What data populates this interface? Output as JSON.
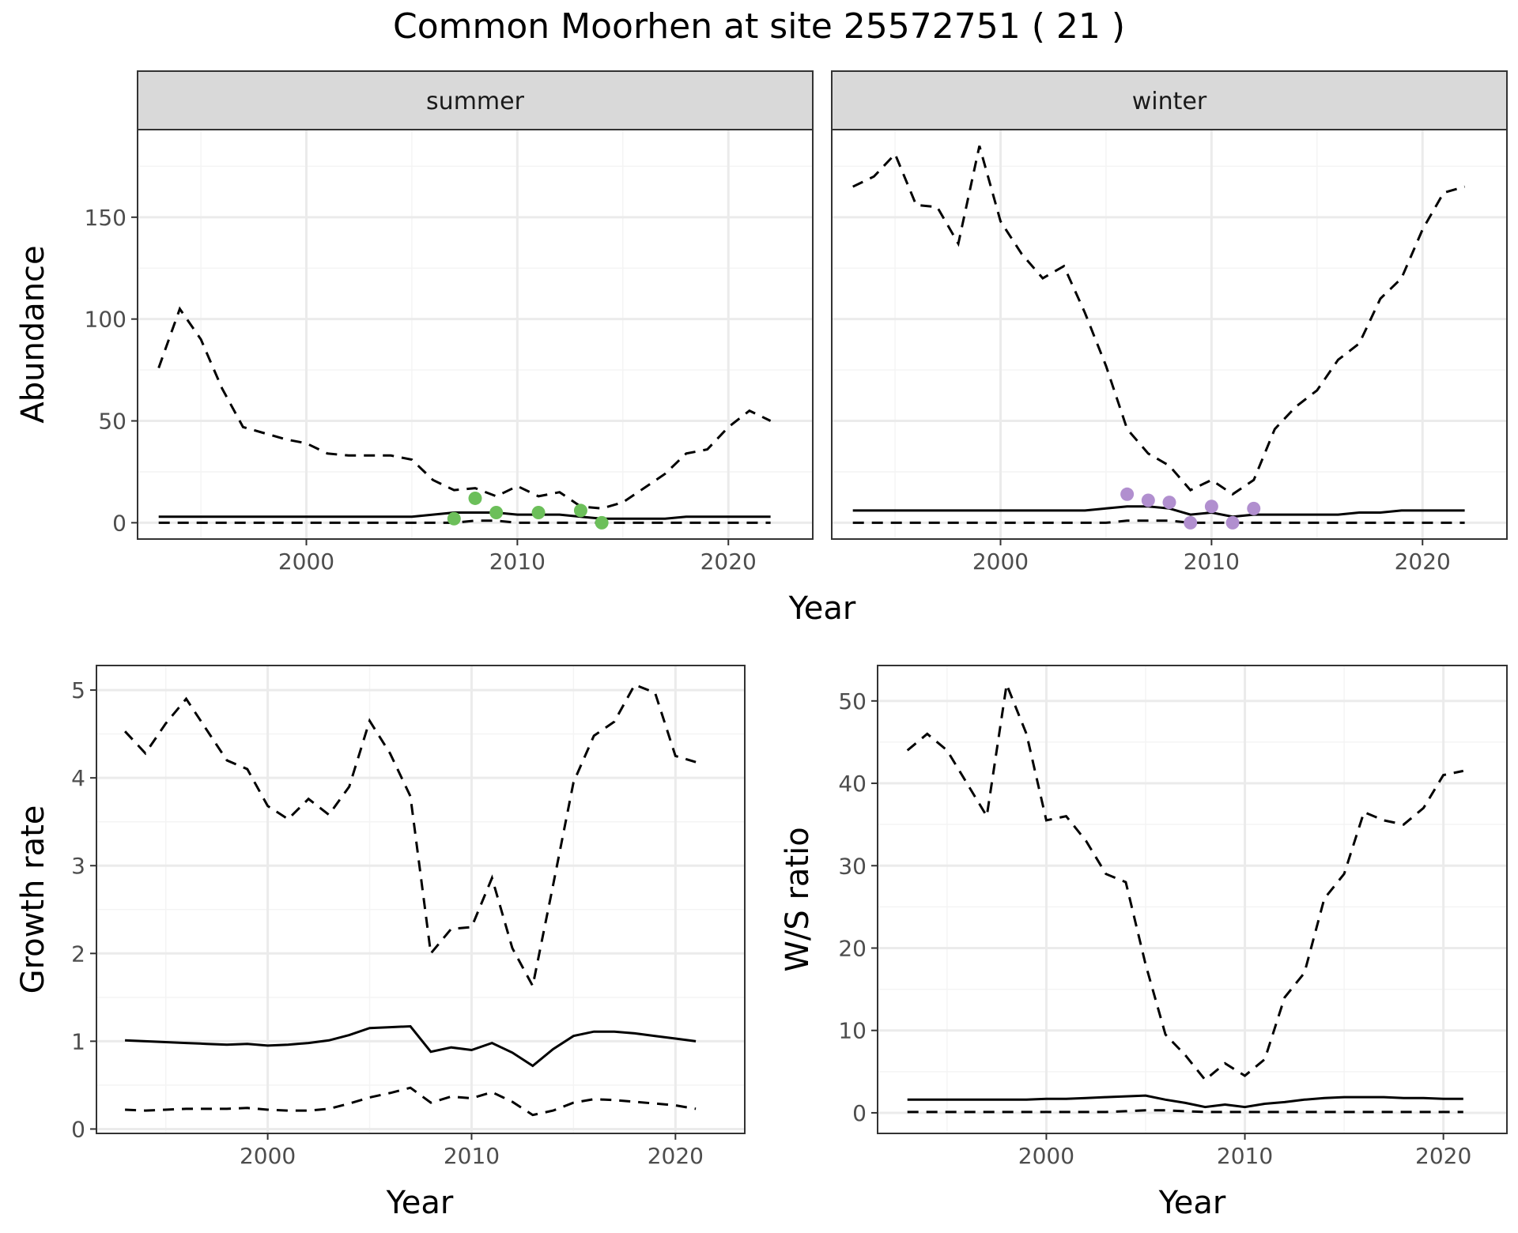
{
  "title": "Common Moorhen at site 25572751 ( 21 )",
  "chart_data": [
    {
      "type": "line",
      "panel": "abundance",
      "strips": [
        "summer",
        "winter"
      ],
      "xlabel": "Year",
      "ylabel": "Abundance",
      "xlim": [
        1992,
        2024
      ],
      "ylim": [
        -8,
        193
      ],
      "xticks": [
        2000,
        2010,
        2020
      ],
      "yticks": [
        0,
        50,
        100,
        150
      ],
      "grid": true,
      "facets": [
        {
          "name": "summer",
          "point_color": "#6cbf5a",
          "series": [
            {
              "name": "estimate",
              "style": "solid",
              "x": [
                1993,
                1994,
                1995,
                1996,
                1997,
                1998,
                1999,
                2000,
                2001,
                2002,
                2003,
                2004,
                2005,
                2006,
                2007,
                2008,
                2009,
                2010,
                2011,
                2012,
                2013,
                2014,
                2015,
                2016,
                2017,
                2018,
                2019,
                2020,
                2021,
                2022
              ],
              "y": [
                3,
                3,
                3,
                3,
                3,
                3,
                3,
                3,
                3,
                3,
                3,
                3,
                3,
                4,
                5,
                5,
                5,
                4,
                4,
                4,
                3,
                2,
                2,
                2,
                2,
                3,
                3,
                3,
                3,
                3
              ]
            },
            {
              "name": "upper",
              "style": "dashed",
              "x": [
                1993,
                1994,
                1995,
                1996,
                1997,
                1998,
                1999,
                2000,
                2001,
                2002,
                2003,
                2004,
                2005,
                2006,
                2007,
                2008,
                2009,
                2010,
                2011,
                2012,
                2013,
                2014,
                2015,
                2016,
                2017,
                2018,
                2019,
                2020,
                2021,
                2022
              ],
              "y": [
                76,
                105,
                90,
                66,
                47,
                44,
                41,
                39,
                34,
                33,
                33,
                33,
                31,
                21,
                16,
                17,
                13,
                18,
                13,
                15,
                8,
                7,
                10,
                17,
                24,
                34,
                36,
                47,
                55,
                50
              ]
            },
            {
              "name": "lower",
              "style": "dashed",
              "x": [
                1993,
                1994,
                1995,
                1996,
                1997,
                1998,
                1999,
                2000,
                2001,
                2002,
                2003,
                2004,
                2005,
                2006,
                2007,
                2008,
                2009,
                2010,
                2011,
                2012,
                2013,
                2014,
                2015,
                2016,
                2017,
                2018,
                2019,
                2020,
                2021,
                2022
              ],
              "y": [
                0,
                0,
                0,
                0,
                0,
                0,
                0,
                0,
                0,
                0,
                0,
                0,
                0,
                0,
                0,
                1,
                1,
                0,
                0,
                0,
                0,
                0,
                0,
                0,
                0,
                0,
                0,
                0,
                0,
                0
              ]
            }
          ],
          "points": {
            "x": [
              2007,
              2008,
              2009,
              2011,
              2013,
              2014
            ],
            "y": [
              2,
              12,
              5,
              5,
              6,
              0
            ]
          }
        },
        {
          "name": "winter",
          "point_color": "#b18fcf",
          "series": [
            {
              "name": "estimate",
              "style": "solid",
              "x": [
                1993,
                1994,
                1995,
                1996,
                1997,
                1998,
                1999,
                2000,
                2001,
                2002,
                2003,
                2004,
                2005,
                2006,
                2007,
                2008,
                2009,
                2010,
                2011,
                2012,
                2013,
                2014,
                2015,
                2016,
                2017,
                2018,
                2019,
                2020,
                2021,
                2022
              ],
              "y": [
                6,
                6,
                6,
                6,
                6,
                6,
                6,
                6,
                6,
                6,
                6,
                6,
                7,
                8,
                8,
                7,
                4,
                5,
                3,
                4,
                4,
                4,
                4,
                4,
                5,
                5,
                6,
                6,
                6,
                6
              ]
            },
            {
              "name": "upper",
              "style": "dashed",
              "x": [
                1993,
                1994,
                1995,
                1996,
                1997,
                1998,
                1999,
                2000,
                2001,
                2002,
                2003,
                2004,
                2005,
                2006,
                2007,
                2008,
                2009,
                2010,
                2011,
                2012,
                2013,
                2014,
                2015,
                2016,
                2017,
                2018,
                2019,
                2020,
                2021,
                2022
              ],
              "y": [
                165,
                170,
                181,
                156,
                155,
                137,
                185,
                148,
                132,
                120,
                126,
                103,
                77,
                46,
                34,
                28,
                16,
                21,
                14,
                21,
                46,
                57,
                65,
                80,
                88,
                110,
                120,
                144,
                162,
                165
              ]
            },
            {
              "name": "lower",
              "style": "dashed",
              "x": [
                1993,
                1994,
                1995,
                1996,
                1997,
                1998,
                1999,
                2000,
                2001,
                2002,
                2003,
                2004,
                2005,
                2006,
                2007,
                2008,
                2009,
                2010,
                2011,
                2012,
                2013,
                2014,
                2015,
                2016,
                2017,
                2018,
                2019,
                2020,
                2021,
                2022
              ],
              "y": [
                0,
                0,
                0,
                0,
                0,
                0,
                0,
                0,
                0,
                0,
                0,
                0,
                0,
                1,
                1,
                1,
                0,
                0,
                0,
                0,
                0,
                0,
                0,
                0,
                0,
                0,
                0,
                0,
                0,
                0
              ]
            }
          ],
          "points": {
            "x": [
              2006,
              2007,
              2008,
              2009,
              2010,
              2011,
              2012
            ],
            "y": [
              14,
              11,
              10,
              0,
              8,
              0,
              7
            ]
          }
        }
      ]
    },
    {
      "type": "line",
      "panel": "growth",
      "xlabel": "Year",
      "ylabel": "Growth rate",
      "xlim": [
        1991.6,
        2023.4
      ],
      "ylim": [
        -0.05,
        5.28
      ],
      "xticks": [
        2000,
        2010,
        2020
      ],
      "yticks": [
        0,
        1,
        2,
        3,
        4,
        5
      ],
      "grid": true,
      "series": [
        {
          "name": "estimate",
          "style": "solid",
          "x": [
            1993,
            1994,
            1995,
            1996,
            1997,
            1998,
            1999,
            2000,
            2001,
            2002,
            2003,
            2004,
            2005,
            2006,
            2007,
            2008,
            2009,
            2010,
            2011,
            2012,
            2013,
            2014,
            2015,
            2016,
            2017,
            2018,
            2019,
            2020,
            2021
          ],
          "y": [
            1.01,
            1.0,
            0.99,
            0.98,
            0.97,
            0.96,
            0.97,
            0.95,
            0.96,
            0.98,
            1.01,
            1.07,
            1.15,
            1.16,
            1.17,
            0.88,
            0.93,
            0.9,
            0.98,
            0.87,
            0.72,
            0.91,
            1.06,
            1.11,
            1.11,
            1.09,
            1.06,
            1.03,
            1.0
          ]
        },
        {
          "name": "upper",
          "style": "dashed",
          "x": [
            1993,
            1994,
            1995,
            1996,
            1997,
            1998,
            1999,
            2000,
            2001,
            2002,
            2003,
            2004,
            2005,
            2006,
            2007,
            2008,
            2009,
            2010,
            2011,
            2012,
            2013,
            2014,
            2015,
            2016,
            2017,
            2018,
            2019,
            2020,
            2021
          ],
          "y": [
            4.53,
            4.28,
            4.62,
            4.9,
            4.55,
            4.2,
            4.1,
            3.68,
            3.53,
            3.76,
            3.58,
            3.9,
            4.65,
            4.28,
            3.79,
            2.0,
            2.28,
            2.3,
            2.86,
            2.06,
            1.63,
            2.78,
            3.95,
            4.48,
            4.64,
            5.06,
            4.97,
            4.25,
            4.18
          ]
        },
        {
          "name": "lower",
          "style": "dashed",
          "x": [
            1993,
            1994,
            1995,
            1996,
            1997,
            1998,
            1999,
            2000,
            2001,
            2002,
            2003,
            2004,
            2005,
            2006,
            2007,
            2008,
            2009,
            2010,
            2011,
            2012,
            2013,
            2014,
            2015,
            2016,
            2017,
            2018,
            2019,
            2020,
            2021
          ],
          "y": [
            0.22,
            0.21,
            0.22,
            0.23,
            0.23,
            0.23,
            0.24,
            0.22,
            0.21,
            0.21,
            0.23,
            0.29,
            0.36,
            0.41,
            0.47,
            0.3,
            0.37,
            0.35,
            0.42,
            0.31,
            0.16,
            0.21,
            0.3,
            0.34,
            0.33,
            0.31,
            0.29,
            0.27,
            0.23
          ]
        }
      ]
    },
    {
      "type": "line",
      "panel": "ratio",
      "xlabel": "Year",
      "ylabel": "W/S ratio",
      "xlim": [
        1991.5,
        2023.2
      ],
      "ylim": [
        -2.5,
        54.3
      ],
      "xticks": [
        2000,
        2010,
        2020
      ],
      "yticks": [
        0,
        10,
        20,
        30,
        40,
        50
      ],
      "grid": true,
      "series": [
        {
          "name": "estimate",
          "style": "solid",
          "x": [
            1993,
            1994,
            1995,
            1996,
            1997,
            1998,
            1999,
            2000,
            2001,
            2002,
            2003,
            2004,
            2005,
            2006,
            2007,
            2008,
            2009,
            2010,
            2011,
            2012,
            2013,
            2014,
            2015,
            2016,
            2017,
            2018,
            2019,
            2020,
            2021
          ],
          "y": [
            1.6,
            1.6,
            1.6,
            1.6,
            1.6,
            1.6,
            1.6,
            1.7,
            1.7,
            1.8,
            1.9,
            2.0,
            2.1,
            1.6,
            1.2,
            0.7,
            1.0,
            0.7,
            1.1,
            1.3,
            1.6,
            1.8,
            1.9,
            1.9,
            1.9,
            1.8,
            1.8,
            1.7,
            1.7
          ]
        },
        {
          "name": "upper",
          "style": "dashed",
          "x": [
            1993,
            1994,
            1995,
            1996,
            1997,
            1998,
            1999,
            2000,
            2001,
            2002,
            2003,
            2004,
            2005,
            2006,
            2007,
            2008,
            2009,
            2010,
            2011,
            2012,
            2013,
            2014,
            2015,
            2016,
            2017,
            2018,
            2019,
            2020,
            2021
          ],
          "y": [
            44,
            46,
            44,
            40,
            36,
            52,
            46,
            35.5,
            36,
            33,
            29,
            28,
            18,
            9.5,
            7,
            4,
            6,
            4.5,
            6.5,
            14,
            17,
            26,
            29,
            36.5,
            35.5,
            35,
            37,
            41,
            41.5
          ]
        },
        {
          "name": "lower",
          "style": "dashed",
          "x": [
            1993,
            1994,
            1995,
            1996,
            1997,
            1998,
            1999,
            2000,
            2001,
            2002,
            2003,
            2004,
            2005,
            2006,
            2007,
            2008,
            2009,
            2010,
            2011,
            2012,
            2013,
            2014,
            2015,
            2016,
            2017,
            2018,
            2019,
            2020,
            2021
          ],
          "y": [
            0.1,
            0.1,
            0.1,
            0.1,
            0.1,
            0.1,
            0.1,
            0.1,
            0.1,
            0.1,
            0.1,
            0.2,
            0.3,
            0.3,
            0.2,
            0.1,
            0.1,
            0.1,
            0.1,
            0.1,
            0.1,
            0.1,
            0.1,
            0.1,
            0.1,
            0.1,
            0.1,
            0.1,
            0.1
          ]
        }
      ]
    }
  ]
}
